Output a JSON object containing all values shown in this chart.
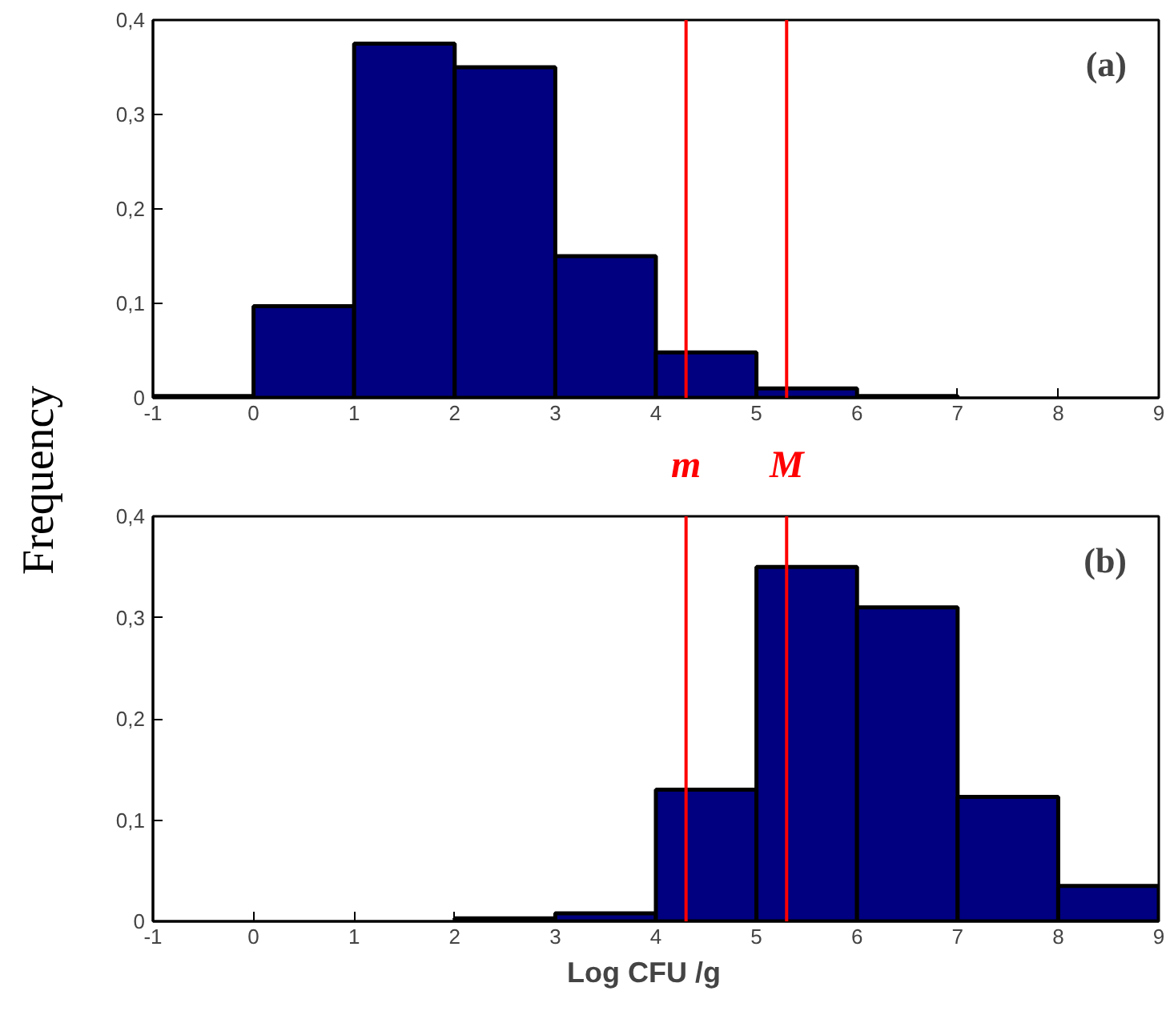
{
  "chart_data": [
    {
      "type": "histogram",
      "bins": [
        -1,
        0,
        1,
        2,
        3,
        4,
        5,
        6,
        7,
        8,
        9
      ],
      "values": [
        0.002,
        0.097,
        0.375,
        0.35,
        0.15,
        0.048,
        0.01,
        0.002,
        0,
        0
      ],
      "color": "#000080",
      "ylabel": "Frequency",
      "xlim": [
        -1,
        9
      ],
      "ylim": [
        0,
        0.4
      ],
      "xticks": [
        -1,
        0,
        1,
        2,
        3,
        4,
        5,
        6,
        7,
        8,
        9
      ],
      "yticks": [
        0,
        {
          "value": 0.1,
          "label": "0,1"
        },
        {
          "value": 0.2,
          "label": "0,2"
        },
        {
          "value": 0.3,
          "label": "0,3"
        },
        {
          "value": 0.4,
          "label": "0,4"
        }
      ],
      "ref_lines": [
        {
          "axis": "x",
          "value": 4.3,
          "label": "m",
          "color": "#ff0000"
        },
        {
          "axis": "x",
          "value": 5.3,
          "label": "M",
          "color": "#ff0000"
        }
      ],
      "annotations": [
        "(a)"
      ],
      "grid": false
    },
    {
      "type": "histogram",
      "bins": [
        -1,
        0,
        1,
        2,
        3,
        4,
        5,
        6,
        7,
        8,
        9
      ],
      "values": [
        0,
        0,
        0,
        0.003,
        0.008,
        0.13,
        0.35,
        0.31,
        0.123,
        0.035
      ],
      "color": "#000080",
      "xlabel": "Log  CFU   /g",
      "xlim": [
        -1,
        9
      ],
      "ylim": [
        0,
        0.4
      ],
      "xticks": [
        -1,
        0,
        1,
        2,
        3,
        4,
        5,
        6,
        7,
        8,
        9
      ],
      "yticks": [
        0,
        {
          "value": 0.1,
          "label": "0,1"
        },
        {
          "value": 0.2,
          "label": "0,2"
        },
        {
          "value": 0.3,
          "label": "0,3"
        },
        {
          "value": 0.4,
          "label": "0,4"
        }
      ],
      "ref_lines": [
        {
          "axis": "x",
          "value": 4.3,
          "color": "#ff0000"
        },
        {
          "axis": "x",
          "value": 5.3,
          "color": "#ff0000"
        }
      ],
      "annotations": [
        "(b)"
      ],
      "grid": false
    }
  ]
}
